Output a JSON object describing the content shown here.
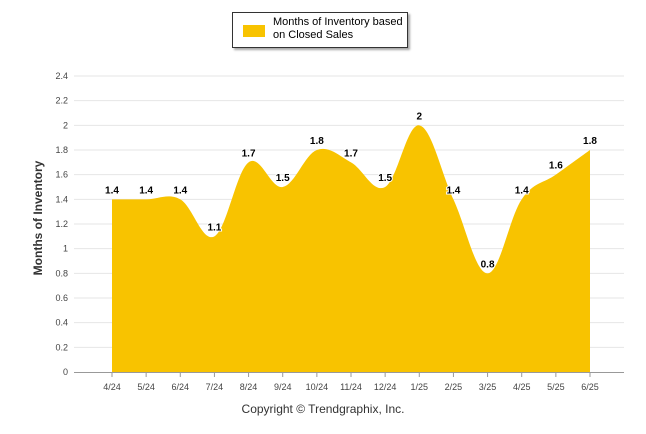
{
  "chart_data": {
    "type": "area",
    "categories": [
      "4/24",
      "5/24",
      "6/24",
      "7/24",
      "8/24",
      "9/24",
      "10/24",
      "11/24",
      "12/24",
      "1/25",
      "2/25",
      "3/25",
      "4/25",
      "5/25",
      "6/25"
    ],
    "series": [
      {
        "name": "Months of Inventory based on Closed Sales",
        "values": [
          1.4,
          1.4,
          1.4,
          1.1,
          1.7,
          1.5,
          1.8,
          1.7,
          1.5,
          2,
          1.4,
          0.8,
          1.4,
          1.6,
          1.8
        ]
      }
    ],
    "data_labels": [
      "1.4",
      "1.4",
      "1.4",
      "1.1",
      "1.7",
      "1.5",
      "1.8",
      "1.7",
      "1.5",
      "2",
      "1.4",
      "0.8",
      "1.4",
      "1.6",
      "1.8"
    ],
    "y_ticks": [
      "0",
      "0.2",
      "0.4",
      "0.6",
      "0.8",
      "1",
      "1.2",
      "1.4",
      "1.6",
      "1.8",
      "2",
      "2.2",
      "2.4"
    ],
    "ylim": [
      0,
      2.4
    ],
    "ylabel": "Months of Inventory",
    "xlabel": "",
    "grid": true,
    "legend_position": "top-center",
    "colors": {
      "area": "#F8C300",
      "grid": "#e6e6e6",
      "axis": "#999999"
    }
  },
  "legend": {
    "label": "Months of Inventory based on Closed Sales"
  },
  "footer": {
    "copyright": "Copyright © Trendgraphix, Inc."
  }
}
